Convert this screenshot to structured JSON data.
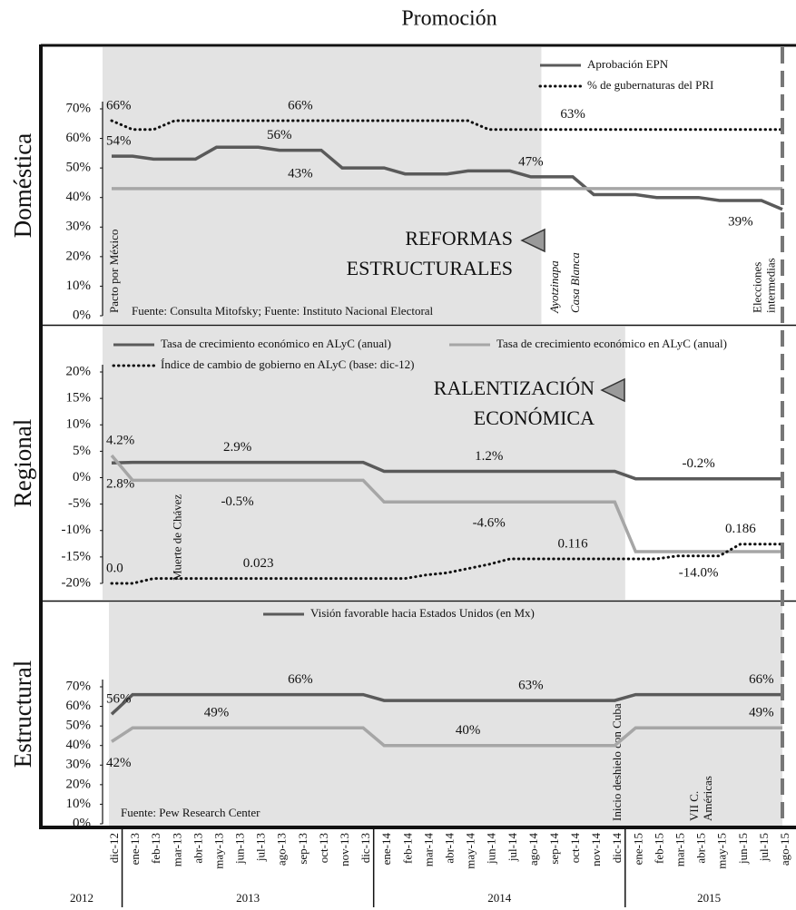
{
  "title": "Promoción",
  "dashed_line_at": "ago-15",
  "chart_data": [
    {
      "type": "line",
      "title": "Doméstica",
      "ylim": [
        0,
        70
      ],
      "yticks": [
        {
          "value": 0,
          "label": "0%"
        },
        {
          "value": 10,
          "label": "10%"
        },
        {
          "value": 20,
          "label": "20%"
        },
        {
          "value": 30,
          "label": "30%"
        },
        {
          "value": 40,
          "label": "40%"
        },
        {
          "value": 50,
          "label": "50%"
        },
        {
          "value": 60,
          "label": "60%"
        },
        {
          "value": 70,
          "label": "70%"
        }
      ],
      "legend": "upper right",
      "shade": [
        "dic-12",
        "ago-14"
      ],
      "callout": [
        "REFORMAS",
        "ESTRUCTURALES"
      ],
      "source": "Fuente: Consulta Mitofsky; Fuente: Instituto Nacional Electoral",
      "annotations": [
        {
          "text": [
            "Pacto por México"
          ],
          "x": "dic-12"
        },
        {
          "text": [
            "Ayotzinapa"
          ],
          "x": "sep-14",
          "italic": true
        },
        {
          "text": [
            "Casa Blanca"
          ],
          "x": "oct-14",
          "italic": true
        },
        {
          "text": [
            "Elecciones",
            "intermedias"
          ],
          "x": "jul-15"
        }
      ],
      "series": [
        {
          "name": "Aprobación EPN",
          "color": "#5a5a5a",
          "style": "solid",
          "values": [
            54,
            54,
            53,
            53,
            53,
            57,
            57,
            57,
            56,
            56,
            56,
            50,
            50,
            50,
            48,
            48,
            48,
            49,
            49,
            49,
            47,
            47,
            47,
            41,
            41,
            41,
            40,
            40,
            40,
            39,
            39,
            39,
            36
          ],
          "value_labels": [
            "54%",
            null,
            null,
            null,
            null,
            null,
            null,
            null,
            "56%",
            null,
            null,
            null,
            null,
            null,
            null,
            null,
            null,
            null,
            null,
            null,
            "47%",
            null,
            null,
            null,
            null,
            null,
            null,
            null,
            null,
            null,
            "39%",
            null,
            null
          ]
        },
        {
          "name": "% de gubernaturas del PRI",
          "color": "#111111",
          "style": "dotted",
          "values": [
            66,
            63,
            63,
            66,
            66,
            66,
            66,
            66,
            66,
            66,
            66,
            66,
            66,
            66,
            66,
            66,
            66,
            66,
            63,
            63,
            63,
            63,
            63,
            63,
            63,
            63,
            63,
            63,
            63,
            63,
            63,
            63,
            63
          ],
          "value_labels": [
            "66%",
            null,
            null,
            null,
            null,
            null,
            null,
            null,
            null,
            "66%",
            null,
            null,
            null,
            null,
            null,
            null,
            null,
            null,
            null,
            null,
            null,
            null,
            "63%",
            null,
            null,
            null,
            null,
            null,
            null,
            null,
            null,
            null,
            null
          ]
        },
        {
          "color": "#a6a6a6",
          "style": "solid",
          "values": [
            43,
            43,
            43,
            43,
            43,
            43,
            43,
            43,
            43,
            43,
            43,
            43,
            43,
            43,
            43,
            43,
            43,
            43,
            43,
            43,
            43,
            43,
            43,
            43,
            43,
            43,
            43,
            43,
            43,
            43,
            43,
            43,
            43
          ],
          "value_labels": [
            null,
            null,
            null,
            null,
            null,
            null,
            null,
            null,
            null,
            "43%",
            null,
            null,
            null,
            null,
            null,
            null,
            null,
            null,
            null,
            null,
            null,
            null,
            null,
            null,
            null,
            null,
            null,
            null,
            null,
            null,
            null,
            null,
            null
          ]
        }
      ]
    },
    {
      "type": "line",
      "title": "Regional",
      "ylim": [
        -20,
        20
      ],
      "yticks": [
        {
          "value": -20,
          "label": "-20%"
        },
        {
          "value": -15,
          "label": "-15%"
        },
        {
          "value": -10,
          "label": "-10%"
        },
        {
          "value": -5,
          "label": "-5%"
        },
        {
          "value": 0,
          "label": "0%"
        },
        {
          "value": 5,
          "label": "5%"
        },
        {
          "value": 10,
          "label": "10%"
        },
        {
          "value": 15,
          "label": "15%"
        },
        {
          "value": 20,
          "label": "20%"
        }
      ],
      "y2lim": [
        0,
        1
      ],
      "legend": "upper left",
      "shade": [
        "dic-12",
        "dic-14"
      ],
      "callout": [
        "RALENTIZACIÓN",
        "ECONÓMICA"
      ],
      "annotations": [
        {
          "text": [
            "Muerte de Chávez"
          ],
          "x": "mar-13"
        }
      ],
      "series": [
        {
          "name": "Tasa de crecimiento económico  en ALyC (anual)",
          "color": "#5a5a5a",
          "style": "solid",
          "values": [
            2.8,
            2.9,
            2.9,
            2.9,
            2.9,
            2.9,
            2.9,
            2.9,
            2.9,
            2.9,
            2.9,
            2.9,
            2.9,
            1.2,
            1.2,
            1.2,
            1.2,
            1.2,
            1.2,
            1.2,
            1.2,
            1.2,
            1.2,
            1.2,
            1.2,
            -0.2,
            -0.2,
            -0.2,
            -0.2,
            -0.2,
            -0.2,
            -0.2,
            -0.2
          ],
          "value_labels": [
            "2.8%",
            null,
            null,
            null,
            null,
            null,
            "2.9%",
            null,
            null,
            null,
            null,
            null,
            null,
            null,
            null,
            null,
            null,
            null,
            "1.2%",
            null,
            null,
            null,
            null,
            null,
            null,
            null,
            null,
            null,
            "-0.2%",
            null,
            null,
            null,
            null
          ]
        },
        {
          "name": "Tasa de crecimiento económico en ALyC (anual)",
          "color": "#a6a6a6",
          "style": "solid",
          "values": [
            4.2,
            -0.5,
            -0.5,
            -0.5,
            -0.5,
            -0.5,
            -0.5,
            -0.5,
            -0.5,
            -0.5,
            -0.5,
            -0.5,
            -0.5,
            -4.6,
            -4.6,
            -4.6,
            -4.6,
            -4.6,
            -4.6,
            -4.6,
            -4.6,
            -4.6,
            -4.6,
            -4.6,
            -4.6,
            -14.0,
            -14.0,
            -14.0,
            -14.0,
            -14.0,
            -14.0,
            -14.0,
            -14.0
          ],
          "value_labels": [
            "4.2%",
            null,
            null,
            null,
            null,
            null,
            "-0.5%",
            null,
            null,
            null,
            null,
            null,
            null,
            null,
            null,
            null,
            null,
            null,
            "-4.6%",
            null,
            null,
            null,
            null,
            null,
            null,
            null,
            null,
            null,
            "-14.0%",
            null,
            null,
            null,
            null
          ]
        },
        {
          "name": "Índice de cambio de gobierno en ALyC (base: dic-12)",
          "color": "#111111",
          "style": "dotted",
          "axis": "y2",
          "values": [
            0,
            0,
            0.023,
            0.023,
            0.023,
            0.023,
            0.023,
            0.023,
            0.023,
            0.023,
            0.023,
            0.023,
            0.023,
            0.023,
            0.023,
            0.04,
            0.05,
            0.07,
            0.09,
            0.116,
            0.116,
            0.116,
            0.116,
            0.116,
            0.116,
            0.116,
            0.116,
            0.13,
            0.13,
            0.13,
            0.186,
            0.186,
            0.186
          ],
          "value_labels": [
            "0.0",
            null,
            null,
            null,
            null,
            null,
            null,
            "0.023",
            null,
            null,
            null,
            null,
            null,
            null,
            null,
            null,
            null,
            null,
            null,
            null,
            null,
            null,
            "0.116",
            null,
            null,
            null,
            null,
            null,
            null,
            null,
            "0.186",
            null,
            null
          ]
        }
      ]
    },
    {
      "type": "line",
      "title": "Estructural",
      "ylim": [
        0,
        70
      ],
      "yticks": [
        {
          "value": 0,
          "label": "0%"
        },
        {
          "value": 10,
          "label": "10%"
        },
        {
          "value": 20,
          "label": "20%"
        },
        {
          "value": 30,
          "label": "30%"
        },
        {
          "value": 40,
          "label": "40%"
        },
        {
          "value": 50,
          "label": "50%"
        },
        {
          "value": 60,
          "label": "60%"
        },
        {
          "value": 70,
          "label": "70%"
        }
      ],
      "legend": "upper center",
      "shade": [
        "dic-12",
        "ago-15"
      ],
      "source": "Fuente: Pew Research Center",
      "annotations": [
        {
          "text": [
            "Inicio deshielo con Cuba"
          ],
          "x": "dic-14"
        },
        {
          "text": [
            "VII C.",
            "Américas"
          ],
          "x": "abr-15"
        }
      ],
      "categories": [
        "dic-12",
        "ene-13",
        "feb-13",
        "mar-13",
        "abr-13",
        "may-13",
        "jun-13",
        "jul-13",
        "ago-13",
        "sep-13",
        "oct-13",
        "nov-13",
        "dic-13",
        "ene-14",
        "feb-14",
        "mar-14",
        "abr-14",
        "may-14",
        "jun-14",
        "jul-14",
        "ago-14",
        "sep-14",
        "oct-14",
        "nov-14",
        "dic-14",
        "ene-15",
        "feb-15",
        "mar-15",
        "abr-15",
        "may-15",
        "jun-15",
        "jul-15",
        "ago-15"
      ],
      "year_groups": [
        {
          "label": "2012",
          "from": "dic-12",
          "to": "dic-12"
        },
        {
          "label": "2013",
          "from": "ene-13",
          "to": "dic-13"
        },
        {
          "label": "2014",
          "from": "ene-14",
          "to": "dic-14"
        },
        {
          "label": "2015",
          "from": "ene-15",
          "to": "ago-15"
        }
      ],
      "series": [
        {
          "name": "Visión favorable hacia Estados Unidos (en Mx)",
          "color": "#5a5a5a",
          "style": "solid",
          "values": [
            56,
            66,
            66,
            66,
            66,
            66,
            66,
            66,
            66,
            66,
            66,
            66,
            66,
            63,
            63,
            63,
            63,
            63,
            63,
            63,
            63,
            63,
            63,
            63,
            63,
            66,
            66,
            66,
            66,
            66,
            66,
            66,
            66
          ],
          "value_labels": [
            "56%",
            null,
            null,
            null,
            null,
            null,
            null,
            null,
            null,
            "66%",
            null,
            null,
            null,
            null,
            null,
            null,
            null,
            null,
            null,
            null,
            "63%",
            null,
            null,
            null,
            null,
            null,
            null,
            null,
            null,
            null,
            null,
            "66%",
            null
          ]
        },
        {
          "color": "#a6a6a6",
          "style": "solid",
          "values": [
            42,
            49,
            49,
            49,
            49,
            49,
            49,
            49,
            49,
            49,
            49,
            49,
            49,
            40,
            40,
            40,
            40,
            40,
            40,
            40,
            40,
            40,
            40,
            40,
            40,
            49,
            49,
            49,
            49,
            49,
            49,
            49,
            49
          ],
          "value_labels": [
            "42%",
            null,
            null,
            null,
            null,
            "49%",
            null,
            null,
            null,
            null,
            null,
            null,
            null,
            null,
            null,
            null,
            null,
            "40%",
            null,
            null,
            null,
            null,
            null,
            null,
            null,
            null,
            null,
            null,
            null,
            null,
            null,
            "49%",
            null
          ]
        }
      ]
    }
  ]
}
